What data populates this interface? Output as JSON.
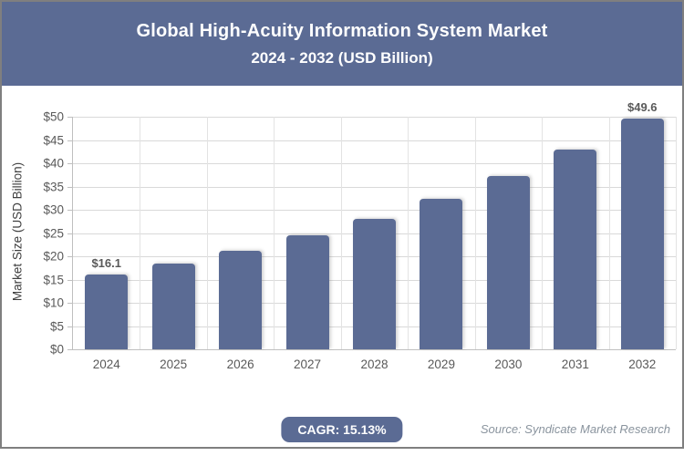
{
  "header": {
    "title": "Global High-Acuity Information System Market",
    "subtitle": "2024 - 2032 (USD Billion)"
  },
  "chart_data": {
    "type": "bar",
    "title": "Global High-Acuity Information System Market 2024 - 2032 (USD Billion)",
    "categories": [
      "2024",
      "2025",
      "2026",
      "2027",
      "2028",
      "2029",
      "2030",
      "2031",
      "2032"
    ],
    "values": [
      16.1,
      18.4,
      21.2,
      24.5,
      28.1,
      32.4,
      37.3,
      43.0,
      49.6
    ],
    "point_labels": [
      {
        "index": 0,
        "text": "$16.1"
      },
      {
        "index": 8,
        "text": "$49.6"
      }
    ],
    "xlabel": "",
    "ylabel": "Market Size (USD Billion)",
    "ylim": [
      0,
      50
    ],
    "ytick_step": 5,
    "ytick_labels": [
      "$0",
      "$5",
      "$10",
      "$15",
      "$20",
      "$25",
      "$30",
      "$35",
      "$40",
      "$45",
      "$50"
    ],
    "grid": true,
    "legend": false,
    "bar_color": "#5b6b94"
  },
  "footer": {
    "cagr_label": "CAGR: 15.13%",
    "source": "Source: Syndicate Market Research"
  },
  "colors": {
    "header_bg": "#5b6b94",
    "bar": "#5b6b94",
    "grid": "#d9d9d9",
    "axis": "#bfbfbf",
    "tick_text": "#595959",
    "source_text": "#8a949e",
    "frame_border": "#7f7f7f"
  }
}
